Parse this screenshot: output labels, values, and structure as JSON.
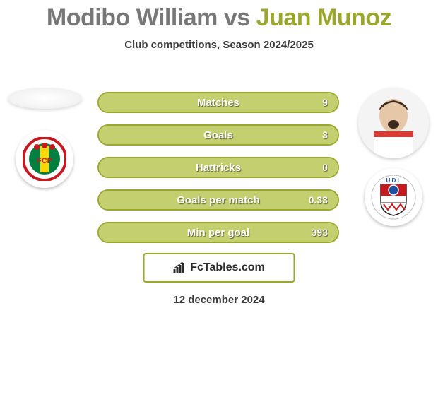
{
  "title": {
    "player1": "Modibo William",
    "vs": "vs",
    "player2": "Juan Munoz"
  },
  "subtitle": "Club competitions, Season 2024/2025",
  "colors": {
    "accent": "#9aa72c",
    "neutral": "#777777",
    "bar_border": "#9aa72c",
    "bar_fill": "#c4cf6f",
    "text_shadow": "#333333"
  },
  "stats": [
    {
      "label": "Matches",
      "value": "9",
      "fill_pct": 100
    },
    {
      "label": "Goals",
      "value": "3",
      "fill_pct": 100
    },
    {
      "label": "Hattricks",
      "value": "0",
      "fill_pct": 100
    },
    {
      "label": "Goals per match",
      "value": "0.33",
      "fill_pct": 100
    },
    {
      "label": "Min per goal",
      "value": "393",
      "fill_pct": 100
    }
  ],
  "branding": {
    "site": "FcTables.com"
  },
  "date": "12 december 2024",
  "left": {
    "player_has_photo": false,
    "club_colors": {
      "ring": "#c81920",
      "stripe1": "#008040",
      "stripe2": "#ffd700"
    },
    "club_letters": "FCP"
  },
  "right": {
    "player_has_photo": true,
    "club_colors": {
      "top": "#ffffff",
      "mid": "#c81920",
      "badge": "#1f4fa0"
    },
    "club_letters": "UDL"
  }
}
